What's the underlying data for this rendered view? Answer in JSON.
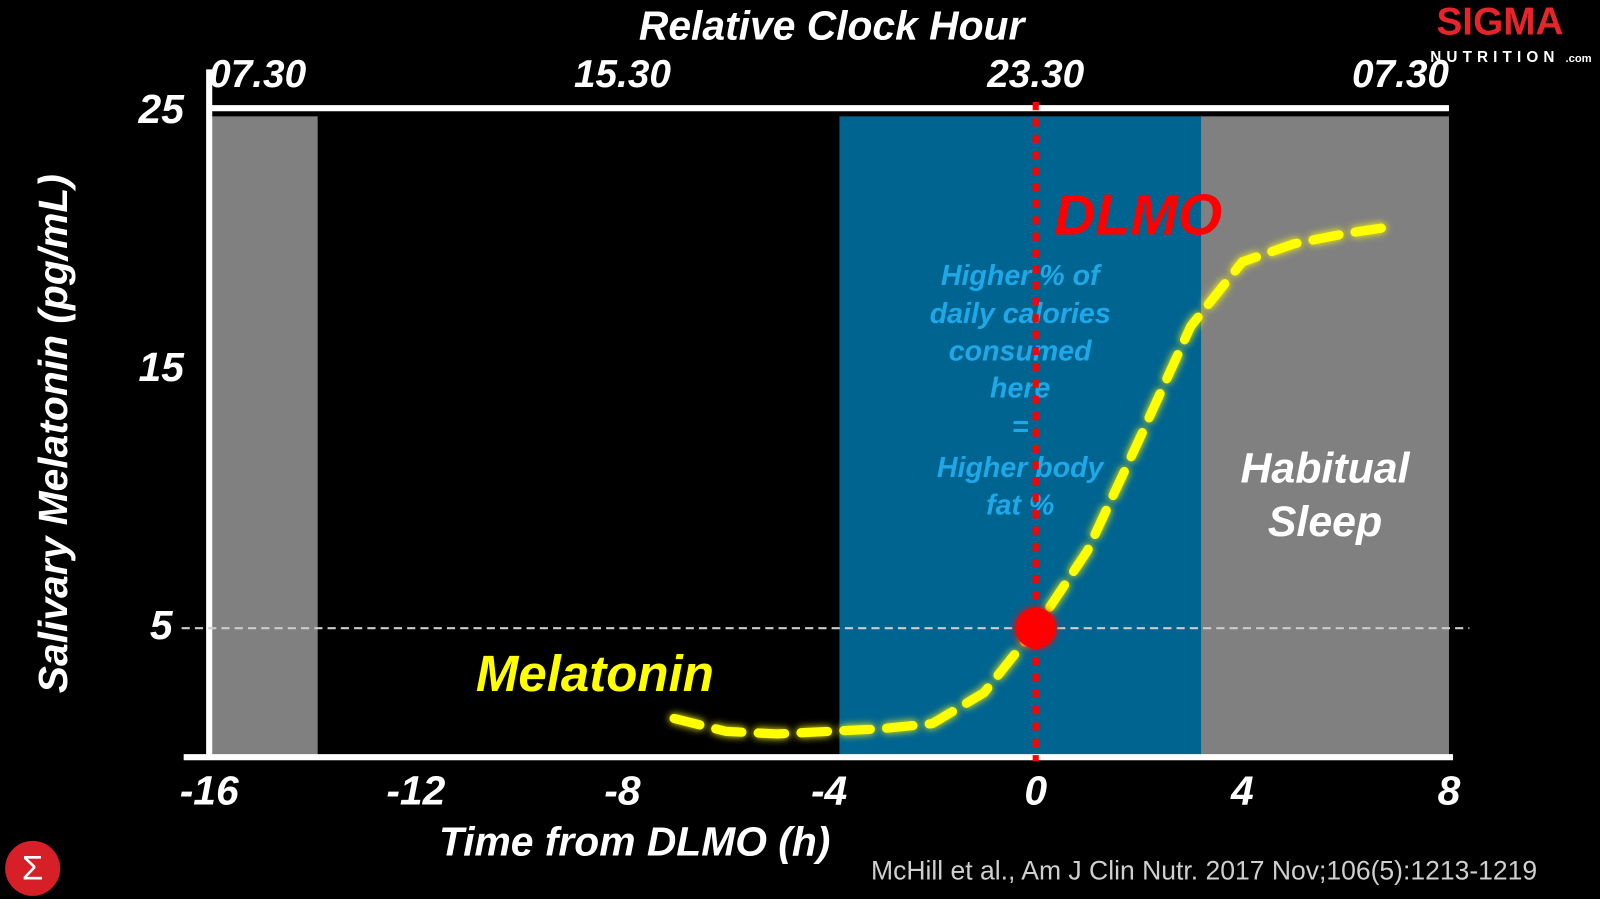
{
  "chart_data": {
    "type": "line",
    "title": "Relative Clock Hour",
    "xlabel": "Time from DLMO (h)",
    "ylabel": "Salivary Melatonin (pg/mL)",
    "xlim": [
      -16,
      8
    ],
    "ylim": [
      0,
      25
    ],
    "xticks": [
      -16,
      -12,
      -8,
      -4,
      0,
      4,
      8
    ],
    "yticks": [
      5,
      15,
      25
    ],
    "x2ticks": [
      {
        "value": -16,
        "label": "07.30"
      },
      {
        "value": -8,
        "label": "15.30"
      },
      {
        "value": 0,
        "label": "23.30"
      },
      {
        "value": 8,
        "label": "07.30"
      }
    ],
    "series": [
      {
        "name": "Melatonin",
        "color": "#ffff00",
        "x": [
          -7,
          -6,
          -5,
          -4,
          -3,
          -2,
          -1,
          0,
          1,
          2,
          3,
          4,
          5,
          6,
          7
        ],
        "values": [
          1.5,
          1.0,
          0.9,
          1.0,
          1.1,
          1.3,
          2.5,
          5,
          8.0,
          12.3,
          16.7,
          19.2,
          19.9,
          20.3,
          20.6
        ]
      }
    ],
    "bands": [
      {
        "start": -16,
        "end": -13.9,
        "color": "#808080"
      },
      {
        "start": -3.8,
        "end": 3.2,
        "color": "#006490",
        "label": [
          "Higher % of",
          "daily calories",
          "consumed",
          "here",
          "=",
          "Higher body",
          "fat %"
        ]
      },
      {
        "start": 3.2,
        "end": 8,
        "color": "#808080",
        "label": [
          "Habitual",
          "Sleep"
        ]
      }
    ],
    "reference_line": {
      "y": 5,
      "color": "#cccccc"
    },
    "marker": {
      "x": 0,
      "y": 5,
      "label": "DLMO",
      "color": "#ff0000"
    },
    "source": "McHill et al., Am J Clin Nutr. 2017 Nov;106(5):1213-1219"
  },
  "logo": {
    "name": "SIGMA",
    "tagline": "NUTRITION",
    "suffix": ".com",
    "icon": "Σ"
  }
}
